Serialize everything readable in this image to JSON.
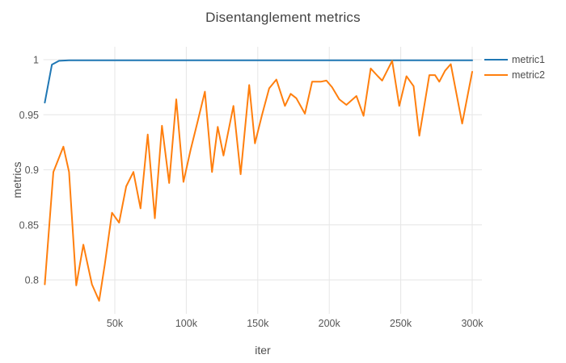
{
  "title": "Disentanglement metrics",
  "colors": {
    "metric1": "#1f77b4",
    "metric2": "#ff7f0e",
    "gridline": "#e6e6e6",
    "tick_text": "#555555",
    "title_text": "#424242"
  },
  "chart_data": {
    "type": "line",
    "title": "Disentanglement metrics",
    "xlabel": "iter",
    "ylabel": "metrics",
    "grid": true,
    "legend_position": "top-right-outside",
    "x_unit": "iterations (values below in thousands)",
    "xlim_k": [
      0,
      307
    ],
    "ylim": [
      0.772,
      1.012
    ],
    "xticks": [
      {
        "k": 50,
        "label": "50k"
      },
      {
        "k": 100,
        "label": "100k"
      },
      {
        "k": 150,
        "label": "150k"
      },
      {
        "k": 200,
        "label": "200k"
      },
      {
        "k": 250,
        "label": "250k"
      },
      {
        "k": 300,
        "label": "300k"
      }
    ],
    "yticks": [
      {
        "v": 0.8,
        "label": "0.8"
      },
      {
        "v": 0.85,
        "label": "0.85"
      },
      {
        "v": 0.9,
        "label": "0.9"
      },
      {
        "v": 0.95,
        "label": "0.95"
      },
      {
        "v": 1.0,
        "label": "1"
      }
    ],
    "series": [
      {
        "name": "metric1",
        "color": "#1f77b4",
        "points": [
          [
            1,
            0.961
          ],
          [
            6,
            0.9955
          ],
          [
            11,
            0.999
          ],
          [
            18,
            0.9995
          ],
          [
            100,
            0.9995
          ],
          [
            200,
            0.9995
          ],
          [
            300,
            0.9995
          ]
        ]
      },
      {
        "name": "metric2",
        "color": "#ff7f0e",
        "points": [
          [
            1,
            0.796
          ],
          [
            7,
            0.898
          ],
          [
            14,
            0.921
          ],
          [
            18,
            0.898
          ],
          [
            23,
            0.795
          ],
          [
            28,
            0.832
          ],
          [
            34,
            0.796
          ],
          [
            39,
            0.781
          ],
          [
            43,
            0.814
          ],
          [
            48,
            0.861
          ],
          [
            53,
            0.852
          ],
          [
            58,
            0.885
          ],
          [
            63,
            0.898
          ],
          [
            68,
            0.865
          ],
          [
            73,
            0.932
          ],
          [
            78,
            0.856
          ],
          [
            83,
            0.94
          ],
          [
            88,
            0.888
          ],
          [
            93,
            0.964
          ],
          [
            98,
            0.889
          ],
          [
            103,
            0.918
          ],
          [
            108,
            0.944
          ],
          [
            113,
            0.971
          ],
          [
            118,
            0.898
          ],
          [
            122,
            0.939
          ],
          [
            126,
            0.913
          ],
          [
            133,
            0.958
          ],
          [
            138,
            0.896
          ],
          [
            144,
            0.977
          ],
          [
            148,
            0.924
          ],
          [
            153,
            0.95
          ],
          [
            158,
            0.974
          ],
          [
            163,
            0.982
          ],
          [
            169,
            0.958
          ],
          [
            173,
            0.969
          ],
          [
            177,
            0.965
          ],
          [
            183,
            0.951
          ],
          [
            188,
            0.98
          ],
          [
            194,
            0.98
          ],
          [
            198,
            0.981
          ],
          [
            202,
            0.975
          ],
          [
            207,
            0.964
          ],
          [
            212,
            0.959
          ],
          [
            219,
            0.967
          ],
          [
            224,
            0.949
          ],
          [
            229,
            0.992
          ],
          [
            234,
            0.985
          ],
          [
            237,
            0.981
          ],
          [
            244,
            0.999
          ],
          [
            249,
            0.958
          ],
          [
            254,
            0.985
          ],
          [
            259,
            0.976
          ],
          [
            263,
            0.931
          ],
          [
            270,
            0.986
          ],
          [
            274,
            0.986
          ],
          [
            277,
            0.98
          ],
          [
            281,
            0.99
          ],
          [
            285,
            0.996
          ],
          [
            293,
            0.942
          ],
          [
            300,
            0.989
          ]
        ]
      }
    ]
  },
  "legend": {
    "items": [
      {
        "label": "metric1"
      },
      {
        "label": "metric2"
      }
    ]
  }
}
